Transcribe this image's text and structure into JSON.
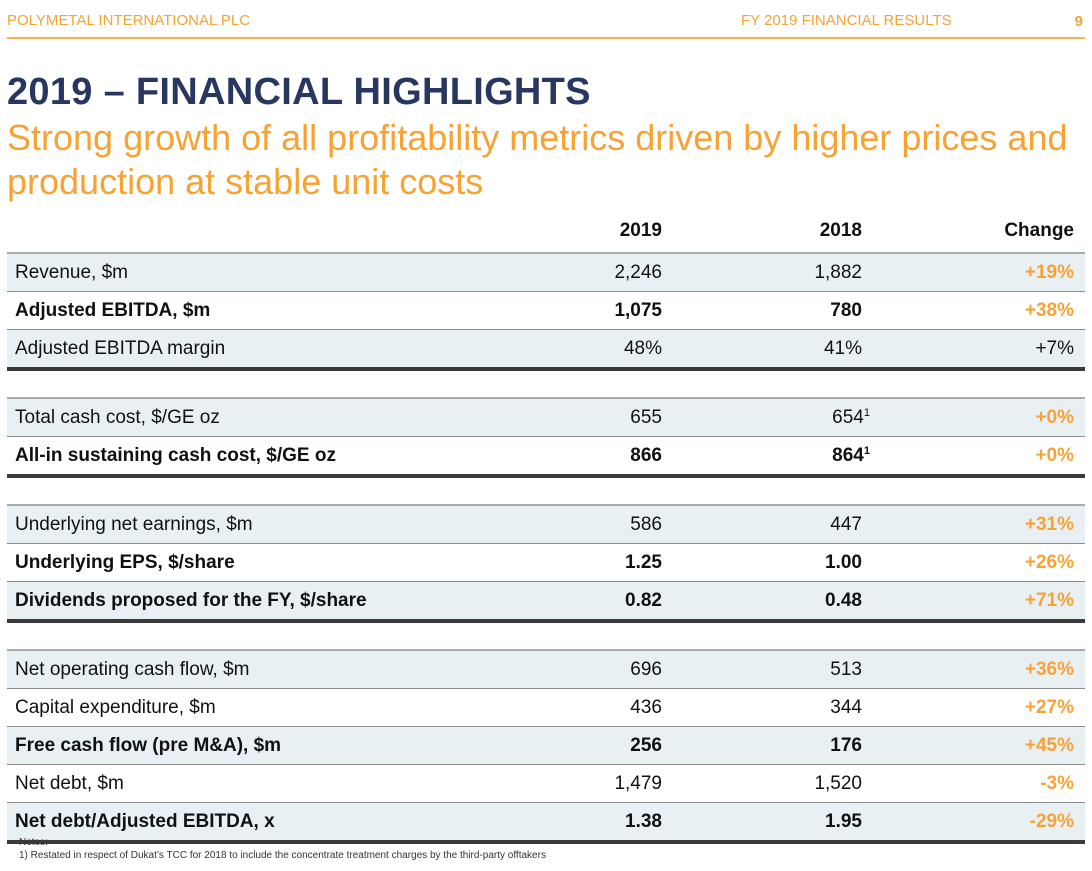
{
  "header": {
    "company": "POLYMETAL INTERNATIONAL PLC",
    "report": "FY 2019 FINANCIAL RESULTS",
    "page_number": "9"
  },
  "title": "2019 – FINANCIAL HIGHLIGHTS",
  "subtitle": "Strong growth of all profitability metrics driven by higher prices and production at stable unit costs",
  "table": {
    "columns": [
      "",
      "2019",
      "2018",
      "Change"
    ],
    "sections": [
      {
        "rows": [
          {
            "label": "Revenue, $m",
            "y2019": "2,246",
            "y2018": "1,882",
            "y2018_note": "",
            "change": "+19%",
            "bold": false,
            "change_highlight": true
          },
          {
            "label": "Adjusted EBITDA, $m",
            "y2019": "1,075",
            "y2018": "780",
            "y2018_note": "",
            "change": "+38%",
            "bold": true,
            "change_highlight": true
          },
          {
            "label": "Adjusted EBITDA margin",
            "y2019": "48%",
            "y2018": "41%",
            "y2018_note": "",
            "change": "+7%",
            "bold": false,
            "change_highlight": false
          }
        ]
      },
      {
        "rows": [
          {
            "label": "Total cash cost, $/GE oz",
            "y2019": "655",
            "y2018": "654",
            "y2018_note": "1",
            "change": "+0%",
            "bold": false,
            "change_highlight": true
          },
          {
            "label": "All-in sustaining cash cost, $/GE oz",
            "y2019": "866",
            "y2018": "864",
            "y2018_note": "1",
            "change": "+0%",
            "bold": true,
            "change_highlight": true
          }
        ]
      },
      {
        "rows": [
          {
            "label": "Underlying net earnings, $m",
            "y2019": "586",
            "y2018": "447",
            "y2018_note": "",
            "change": "+31%",
            "bold": false,
            "change_highlight": true
          },
          {
            "label": "Underlying EPS, $/share",
            "y2019": "1.25",
            "y2018": "1.00",
            "y2018_note": "",
            "change": "+26%",
            "bold": true,
            "change_highlight": true
          },
          {
            "label": "Dividends proposed for the FY, $/share",
            "y2019": "0.82",
            "y2018": "0.48",
            "y2018_note": "",
            "change": "+71%",
            "bold": true,
            "change_highlight": true
          }
        ]
      },
      {
        "rows": [
          {
            "label": "Net operating cash flow, $m",
            "y2019": "696",
            "y2018": "513",
            "y2018_note": "",
            "change": "+36%",
            "bold": false,
            "change_highlight": true
          },
          {
            "label": "Capital expenditure, $m",
            "y2019": "436",
            "y2018": "344",
            "y2018_note": "",
            "change": "+27%",
            "bold": false,
            "change_highlight": true
          },
          {
            "label": "Free cash flow (pre M&A), $m",
            "y2019": "256",
            "y2018": "176",
            "y2018_note": "",
            "change": "+45%",
            "bold": true,
            "change_highlight": true
          },
          {
            "label": "Net debt, $m",
            "y2019": "1,479",
            "y2018": "1,520",
            "y2018_note": "",
            "change": "-3%",
            "bold": false,
            "change_highlight": true
          },
          {
            "label": "Net debt/Adjusted EBITDA, x",
            "y2019": "1.38",
            "y2018": "1.95",
            "y2018_note": "",
            "change": "-29%",
            "bold": true,
            "change_highlight": true
          }
        ]
      }
    ]
  },
  "notes": {
    "heading": "Notes:",
    "items": [
      "1) Restated in respect of Dukat’s TCC for 2018 to include the concentrate treatment charges by the third-party offtakers"
    ]
  },
  "colors": {
    "accent_orange": "#f7a233",
    "title_navy": "#27375f",
    "row_shade": "#e9f0f4"
  }
}
